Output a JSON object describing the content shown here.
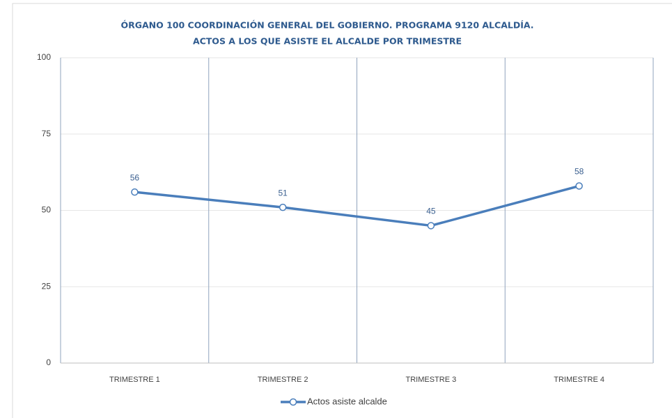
{
  "chart_data": {
    "type": "line",
    "title": [
      "ÓRGANO 100 COORDINACIÓN GENERAL DEL GOBIERNO. PROGRAMA 9120 ALCALDÍA.",
      "ACTOS A LOS QUE ASISTE EL ALCALDE POR TRIMESTRE"
    ],
    "categories": [
      "TRIMESTRE 1",
      "TRIMESTRE 2",
      "TRIMESTRE 3",
      "TRIMESTRE 4"
    ],
    "series": [
      {
        "name": "Actos asiste alcalde",
        "color": "#4a7ebb",
        "values": [
          56,
          51,
          45,
          58
        ]
      }
    ],
    "ylim": [
      0,
      100
    ],
    "yticks": [
      0,
      25,
      50,
      75,
      100
    ],
    "grid": true,
    "legend": "bottom"
  }
}
